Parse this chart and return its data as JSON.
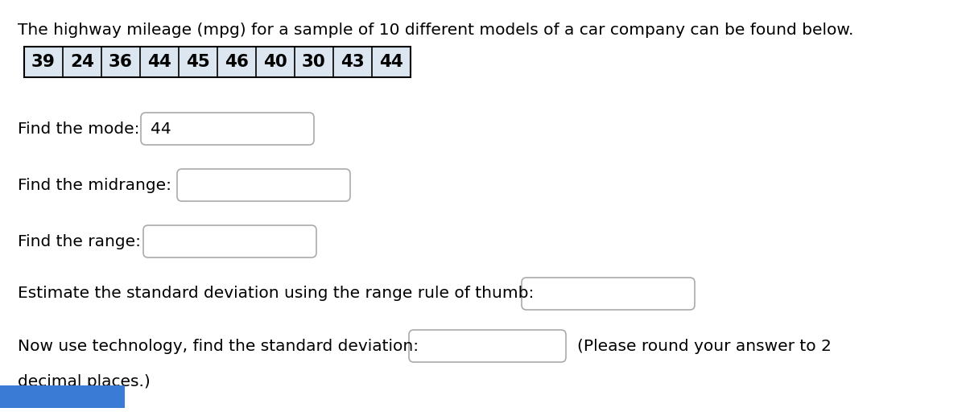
{
  "title": "The highway mileage (mpg) for a sample of 10 different models of a car company can be found below.",
  "data_values": [
    39,
    24,
    36,
    44,
    45,
    46,
    40,
    30,
    43,
    44
  ],
  "mode_label": "Find the mode:",
  "mode_value": "44",
  "midrange_label": "Find the midrange:",
  "range_label": "Find the range:",
  "std_estimate_label": "Estimate the standard deviation using the range rule of thumb:",
  "std_tech_label": "Now use technology, find the standard deviation:",
  "std_tech_suffix": "(Please round your answer to 2",
  "decimal_label": "decimal places.)",
  "bg_color": "#ffffff",
  "text_color": "#000000",
  "font_size": 14.5,
  "table_border_color": "#000000",
  "table_cell_fill": "#dce6f1",
  "box_border_color": "#aaaaaa",
  "box_fill_color": "#ffffff",
  "bottom_bar_color": "#3a7bd5",
  "fig_width": 12.0,
  "fig_height": 5.17
}
